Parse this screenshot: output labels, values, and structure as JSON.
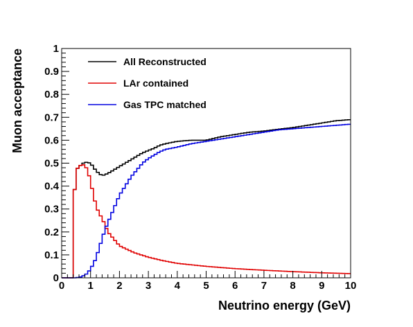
{
  "chart_data": {
    "type": "line",
    "xlabel": "Neutrino energy (GeV)",
    "ylabel": "Muon acceptance",
    "xlim": [
      0,
      10
    ],
    "ylim": [
      0,
      1
    ],
    "x_ticks": [
      "0",
      "1",
      "2",
      "3",
      "4",
      "5",
      "6",
      "7",
      "8",
      "9",
      "10"
    ],
    "y_ticks": [
      "0",
      "0.1",
      "0.2",
      "0.3",
      "0.4",
      "0.5",
      "0.6",
      "0.7",
      "0.8",
      "0.9",
      "1"
    ],
    "grid": false,
    "legend_position": "top-left",
    "bin_width": 0.1,
    "series": [
      {
        "name": "All Reconstructed",
        "color": "#000000",
        "x": [
          0.4,
          0.5,
          0.6,
          0.7,
          0.8,
          1.0,
          1.2,
          1.4,
          1.6,
          1.8,
          2.0,
          2.2,
          2.4,
          2.6,
          2.8,
          3.0,
          3.2,
          3.4,
          3.6,
          3.8,
          4.0,
          4.5,
          5.0,
          5.5,
          6.0,
          6.5,
          7.0,
          7.5,
          8.0,
          8.5,
          9.0,
          9.5,
          10.0
        ],
        "y": [
          0.3,
          0.47,
          0.485,
          0.495,
          0.505,
          0.5,
          0.465,
          0.445,
          0.455,
          0.47,
          0.485,
          0.5,
          0.515,
          0.53,
          0.545,
          0.555,
          0.565,
          0.578,
          0.585,
          0.59,
          0.595,
          0.6,
          0.6,
          0.615,
          0.625,
          0.635,
          0.64,
          0.648,
          0.655,
          0.665,
          0.675,
          0.685,
          0.69
        ]
      },
      {
        "name": "LAr contained",
        "color": "#e00000",
        "x": [
          0.4,
          0.5,
          0.6,
          0.7,
          0.8,
          0.9,
          1.0,
          1.1,
          1.2,
          1.3,
          1.4,
          1.5,
          1.6,
          1.8,
          2.0,
          2.5,
          3.0,
          3.5,
          4.0,
          5.0,
          6.0,
          7.0,
          8.0,
          9.0,
          10.0
        ],
        "y": [
          0.3,
          0.47,
          0.485,
          0.495,
          0.49,
          0.47,
          0.42,
          0.36,
          0.31,
          0.28,
          0.26,
          0.23,
          0.2,
          0.17,
          0.14,
          0.11,
          0.09,
          0.075,
          0.063,
          0.05,
          0.04,
          0.033,
          0.027,
          0.022,
          0.018
        ]
      },
      {
        "name": "Gas TPC matched",
        "color": "#0000e0",
        "x": [
          0.5,
          0.7,
          0.9,
          1.0,
          1.1,
          1.2,
          1.3,
          1.4,
          1.5,
          1.6,
          1.7,
          1.8,
          1.9,
          2.0,
          2.2,
          2.4,
          2.6,
          2.8,
          3.0,
          3.2,
          3.4,
          3.6,
          3.8,
          4.0,
          4.5,
          5.0,
          5.5,
          6.0,
          6.5,
          7.0,
          7.5,
          8.0,
          8.5,
          9.0,
          9.5,
          10.0
        ],
        "y": [
          0.0,
          0.005,
          0.02,
          0.04,
          0.06,
          0.09,
          0.13,
          0.17,
          0.21,
          0.24,
          0.27,
          0.3,
          0.33,
          0.36,
          0.4,
          0.44,
          0.47,
          0.5,
          0.52,
          0.535,
          0.55,
          0.56,
          0.565,
          0.57,
          0.585,
          0.595,
          0.605,
          0.615,
          0.625,
          0.635,
          0.645,
          0.65,
          0.655,
          0.66,
          0.665,
          0.67
        ]
      }
    ]
  }
}
